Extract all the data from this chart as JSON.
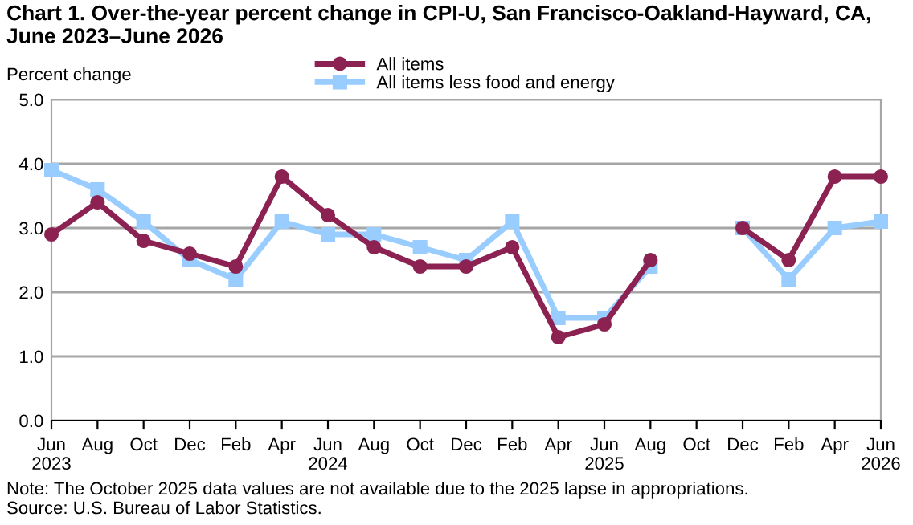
{
  "chart_data": {
    "type": "line",
    "title": "Chart 1. Over-the-year percent change in CPI-U, San Francisco-Oakland-Hayward, CA,\nJune 2023–June 2026",
    "ylabel": "Percent change",
    "categories": [
      "Jun\n2023",
      "Aug",
      "Oct",
      "Dec",
      "Feb",
      "Apr",
      "Jun\n2024",
      "Aug",
      "Oct",
      "Dec",
      "Feb",
      "Apr",
      "Jun\n2025",
      "Aug",
      "Oct",
      "Dec",
      "Feb",
      "Apr",
      "Jun\n2026"
    ],
    "series": [
      {
        "name": "All items",
        "color": "#8b2252",
        "marker": "circle",
        "values": [
          2.9,
          3.4,
          2.8,
          2.6,
          2.4,
          3.8,
          3.2,
          2.7,
          2.4,
          2.4,
          2.7,
          1.3,
          1.5,
          2.5,
          null,
          3.0,
          2.5,
          3.8,
          3.8
        ]
      },
      {
        "name": "All items less food and energy",
        "color": "#99ccff",
        "marker": "square",
        "values": [
          3.9,
          3.6,
          3.1,
          2.5,
          2.2,
          3.1,
          2.9,
          2.9,
          2.7,
          2.5,
          3.1,
          1.6,
          1.6,
          2.4,
          null,
          3.0,
          2.2,
          3.0,
          3.1
        ]
      }
    ],
    "ylim": [
      0,
      5
    ],
    "yticks": [
      {
        "value": 0,
        "label": "0.0"
      },
      {
        "value": 1,
        "label": "1.0"
      },
      {
        "value": 2,
        "label": "2.0"
      },
      {
        "value": 3,
        "label": "3.0"
      },
      {
        "value": 4,
        "label": "4.0"
      },
      {
        "value": 5,
        "label": "5.0"
      }
    ],
    "grid": "y",
    "legend": "top",
    "line_style": "solid",
    "annotations": [
      "Note: The October 2025 data values are not available due to the 2025 lapse in appropriations.",
      "Source: U.S. Bureau of Labor Statistics."
    ]
  }
}
